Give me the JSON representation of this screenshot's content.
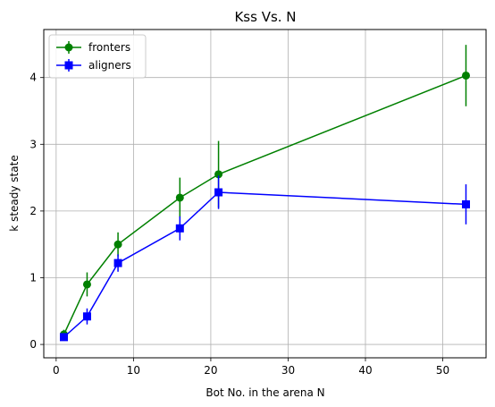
{
  "chart_data": {
    "type": "line",
    "title": "Kss Vs. N",
    "xlabel": "Bot No. in the arena N",
    "ylabel": "k steady state",
    "xlim": [
      -1.6,
      55.6
    ],
    "ylim": [
      -0.2,
      4.72
    ],
    "xticks": [
      0,
      10,
      20,
      30,
      40,
      50
    ],
    "yticks": [
      0,
      1,
      2,
      3,
      4
    ],
    "grid": true,
    "legend_position": "top-left",
    "series": [
      {
        "name": "fronters",
        "color": "#008000",
        "marker": "circle",
        "x": [
          1,
          4,
          8,
          16,
          21,
          53
        ],
        "y": [
          0.15,
          0.9,
          1.5,
          2.2,
          2.55,
          4.03
        ],
        "err": [
          0.07,
          0.18,
          0.18,
          0.3,
          0.5,
          0.46
        ]
      },
      {
        "name": "aligners",
        "color": "#0000ff",
        "marker": "square",
        "x": [
          1,
          4,
          8,
          16,
          21,
          53
        ],
        "y": [
          0.11,
          0.42,
          1.22,
          1.74,
          2.28,
          2.1
        ],
        "err": [
          0.05,
          0.12,
          0.13,
          0.18,
          0.25,
          0.3
        ]
      }
    ]
  }
}
